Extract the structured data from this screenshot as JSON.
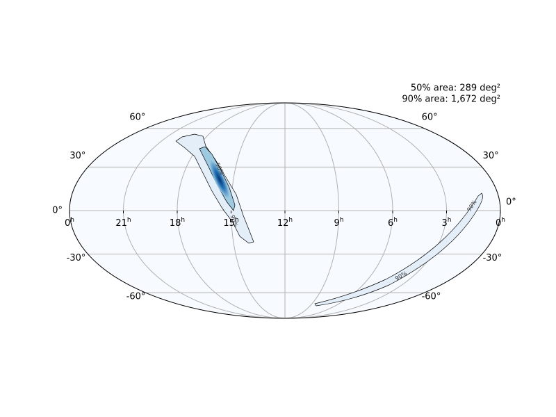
{
  "annotations": [
    "50% area: 289 deg²",
    "90% area: 1,672 deg²"
  ],
  "dec_ticks": [
    {
      "value": 60,
      "label": "60°"
    },
    {
      "value": 30,
      "label": "30°"
    },
    {
      "value": 0,
      "label": "0°"
    },
    {
      "value": -30,
      "label": "-30°"
    },
    {
      "value": -60,
      "label": "-60°"
    }
  ],
  "ra_ticks": [
    {
      "value": 24,
      "label": "0"
    },
    {
      "value": 21,
      "label": "21"
    },
    {
      "value": 18,
      "label": "18"
    },
    {
      "value": 15,
      "label": "15"
    },
    {
      "value": 12,
      "label": "12"
    },
    {
      "value": 9,
      "label": "9"
    },
    {
      "value": 6,
      "label": "6"
    },
    {
      "value": 3,
      "label": "3"
    },
    {
      "value": 0,
      "label": "0"
    }
  ],
  "ra_unit": "h",
  "contour_labels": [
    "50%",
    "90%",
    "90%",
    "90%"
  ]
}
